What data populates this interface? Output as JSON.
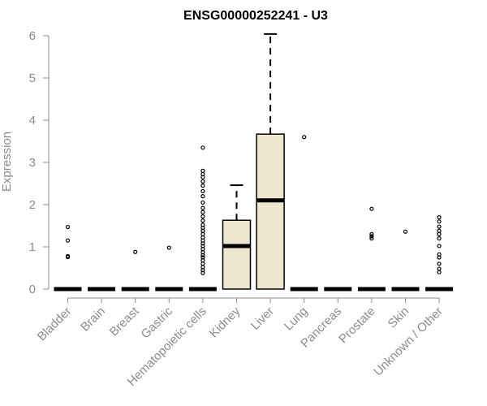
{
  "chart_data": {
    "type": "box",
    "title": "ENSG00000252241 - U3",
    "ylabel": "Expression",
    "xlabel": "",
    "ylim": [
      0,
      6
    ],
    "yticks": [
      "0",
      "1",
      "2",
      "3",
      "4",
      "5",
      "6"
    ],
    "grid": false,
    "colors": {
      "box_fill": "#ede7cf",
      "stroke": "#000000",
      "axis_text": "#8c8c8c"
    },
    "categories": [
      "Bladder",
      "Brain",
      "Breast",
      "Gastric",
      "Hematopoietic cells",
      "Kidney",
      "Liver",
      "Lung",
      "Pancreas",
      "Prostate",
      "Skin",
      "Unknown / Other"
    ],
    "boxes": [
      {
        "category": "Bladder",
        "q1": 0,
        "median": 0,
        "q3": 0,
        "whisker_low": 0,
        "whisker_high": 0,
        "outliers": [
          0.76,
          0.78,
          1.15,
          1.47
        ]
      },
      {
        "category": "Brain",
        "q1": 0,
        "median": 0,
        "q3": 0,
        "whisker_low": 0,
        "whisker_high": 0,
        "outliers": []
      },
      {
        "category": "Breast",
        "q1": 0,
        "median": 0,
        "q3": 0,
        "whisker_low": 0,
        "whisker_high": 0,
        "outliers": [
          0.88
        ]
      },
      {
        "category": "Gastric",
        "q1": 0,
        "median": 0,
        "q3": 0,
        "whisker_low": 0,
        "whisker_high": 0,
        "outliers": [
          0.98
        ]
      },
      {
        "category": "Hematopoietic cells",
        "q1": 0,
        "median": 0,
        "q3": 0,
        "whisker_low": 0,
        "whisker_high": 0,
        "outliers": [
          0.38,
          0.45,
          0.52,
          0.6,
          0.68,
          0.75,
          0.8,
          0.87,
          0.95,
          1.02,
          1.08,
          1.15,
          1.22,
          1.3,
          1.38,
          1.45,
          1.52,
          1.62,
          1.72,
          1.82,
          1.92,
          2.05,
          2.2,
          2.32,
          2.45,
          2.55,
          2.65,
          2.72,
          2.8,
          3.35
        ]
      },
      {
        "category": "Kidney",
        "q1": 0,
        "median": 1.02,
        "q3": 1.63,
        "whisker_low": 0,
        "whisker_high": 2.46,
        "outliers": []
      },
      {
        "category": "Liver",
        "q1": 0,
        "median": 2.1,
        "q3": 3.67,
        "whisker_low": 0,
        "whisker_high": 6.04,
        "outliers": []
      },
      {
        "category": "Lung",
        "q1": 0,
        "median": 0,
        "q3": 0,
        "whisker_low": 0,
        "whisker_high": 0,
        "outliers": [
          3.6
        ]
      },
      {
        "category": "Pancreas",
        "q1": 0,
        "median": 0,
        "q3": 0,
        "whisker_low": 0,
        "whisker_high": 0,
        "outliers": []
      },
      {
        "category": "Prostate",
        "q1": 0,
        "median": 0,
        "q3": 0,
        "whisker_low": 0,
        "whisker_high": 0,
        "outliers": [
          1.2,
          1.25,
          1.3,
          1.9
        ]
      },
      {
        "category": "Skin",
        "q1": 0,
        "median": 0,
        "q3": 0,
        "whisker_low": 0,
        "whisker_high": 0,
        "outliers": [
          1.36
        ]
      },
      {
        "category": "Unknown / Other",
        "q1": 0,
        "median": 0,
        "q3": 0,
        "whisker_low": 0,
        "whisker_high": 0,
        "outliers": [
          0.4,
          0.48,
          0.6,
          0.75,
          0.82,
          1.02,
          1.2,
          1.3,
          1.38,
          1.48,
          1.6,
          1.7
        ]
      }
    ]
  }
}
